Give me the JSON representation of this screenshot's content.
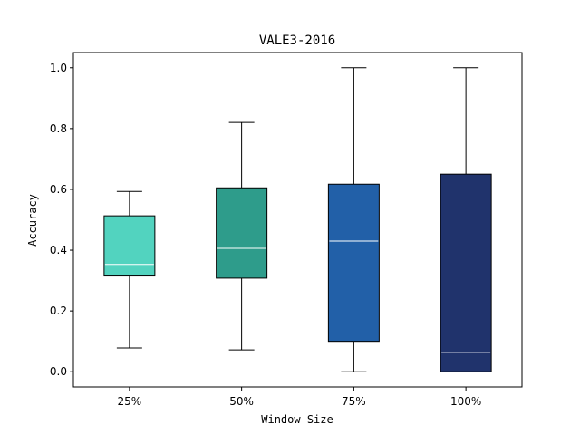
{
  "chart_data": {
    "type": "box",
    "title": "VALE3-2016",
    "xlabel": "Window Size",
    "ylabel": "Accuracy",
    "ylim": [
      -0.05,
      1.05
    ],
    "yticks": [
      0.0,
      0.2,
      0.4,
      0.6,
      0.8,
      1.0
    ],
    "categories": [
      "25%",
      "50%",
      "75%",
      "100%"
    ],
    "boxes": [
      {
        "category": "25%",
        "min": 0.078,
        "q1": 0.315,
        "median": 0.353,
        "q3": 0.513,
        "max": 0.593,
        "color": "#52d3bf"
      },
      {
        "category": "50%",
        "min": 0.072,
        "q1": 0.308,
        "median": 0.406,
        "q3": 0.605,
        "max": 0.82,
        "color": "#2e9c8b"
      },
      {
        "category": "75%",
        "min": 0.0,
        "q1": 0.1,
        "median": 0.43,
        "q3": 0.617,
        "max": 1.0,
        "color": "#2260a8"
      },
      {
        "category": "100%",
        "min": 0.0,
        "q1": 0.0,
        "median": 0.063,
        "q3": 0.65,
        "max": 1.0,
        "color": "#20336c"
      }
    ],
    "grid": false,
    "legend": "none"
  }
}
